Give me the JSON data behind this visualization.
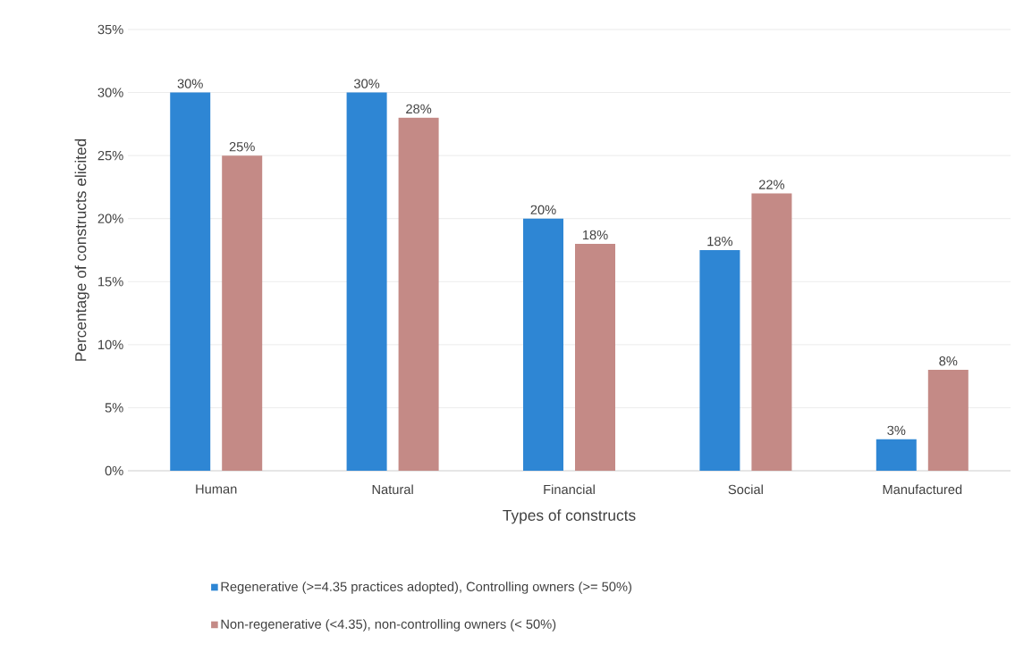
{
  "chart_data": {
    "type": "bar",
    "xlabel": "Types of constructs",
    "ylabel": "Percentage of constructs elicited",
    "categories": [
      "Human",
      "Natural",
      "Financial",
      "Social",
      "Manufactured"
    ],
    "series": [
      {
        "name": "Regenerative (>=4.35 practices adopted), Controlling owners (>= 50%)",
        "color": "#2e86d4",
        "values": [
          30,
          30,
          20,
          17.5,
          2.5
        ],
        "value_labels": [
          "30%",
          "30%",
          "20%",
          "18%",
          "3%"
        ]
      },
      {
        "name": "Non-regenerative (<4.35), non-controlling owners (< 50%)",
        "color": "#c48a86",
        "values": [
          25,
          28,
          18,
          22,
          8
        ],
        "value_labels": [
          "25%",
          "28%",
          "18%",
          "22%",
          "8%"
        ]
      }
    ],
    "ylim": [
      0,
      35
    ],
    "yticks": [
      {
        "value": 0,
        "label": "0%"
      },
      {
        "value": 5,
        "label": "5%"
      },
      {
        "value": 10,
        "label": "10%"
      },
      {
        "value": 15,
        "label": "15%"
      },
      {
        "value": 20,
        "label": "20%"
      },
      {
        "value": 25,
        "label": "25%"
      },
      {
        "value": 30,
        "label": "30%"
      },
      {
        "value": 35,
        "label": "35%"
      }
    ],
    "grid": "y",
    "legend": "bottom"
  }
}
